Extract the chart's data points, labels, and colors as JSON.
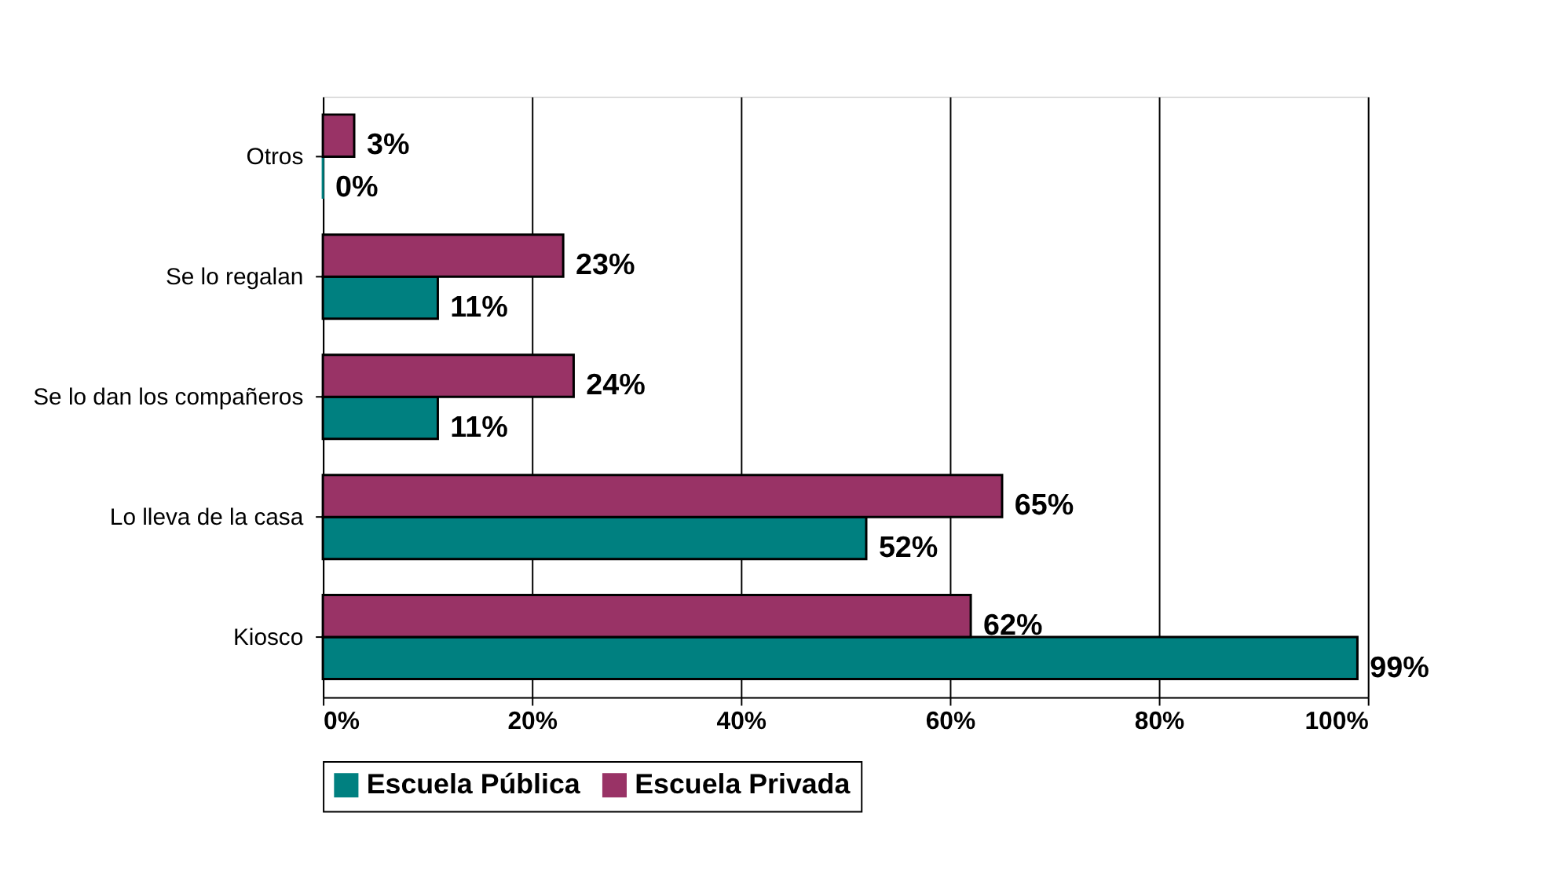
{
  "chart_data": {
    "type": "bar",
    "orientation": "horizontal",
    "categories": [
      "Otros",
      "Se lo regalan",
      "Se lo dan los compañeros",
      "Lo lleva de la casa",
      "Kiosco"
    ],
    "series": [
      {
        "name": "Escuela Pública",
        "color": "#008080",
        "values": [
          0,
          11,
          11,
          52,
          99
        ],
        "value_labels": [
          "0%",
          "11%",
          "11%",
          "52%",
          "99%"
        ]
      },
      {
        "name": "Escuela Privada",
        "color": "#993366",
        "values": [
          3,
          23,
          24,
          65,
          62
        ],
        "value_labels": [
          "3%",
          "23%",
          "24%",
          "65%",
          "62%"
        ]
      }
    ],
    "xlim": [
      0,
      100
    ],
    "xticks": [
      {
        "value": 0,
        "label": "0%"
      },
      {
        "value": 20,
        "label": "20%"
      },
      {
        "value": 40,
        "label": "40%"
      },
      {
        "value": 60,
        "label": "60%"
      },
      {
        "value": 80,
        "label": "80%"
      },
      {
        "value": 100,
        "label": "100%"
      }
    ],
    "grid": "x",
    "legend": "bottom"
  }
}
